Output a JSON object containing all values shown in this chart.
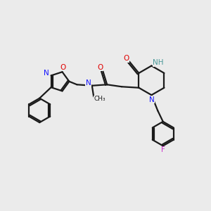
{
  "bg_color": "#ebebeb",
  "bond_color": "#1a1a1a",
  "N_color": "#1414ff",
  "O_color": "#e00000",
  "NH_color": "#4a9898",
  "F_color": "#cc33cc",
  "line_width": 1.6,
  "figsize": [
    3.0,
    3.0
  ],
  "dpi": 100,
  "xlim": [
    0,
    10
  ],
  "ylim": [
    0,
    10
  ]
}
